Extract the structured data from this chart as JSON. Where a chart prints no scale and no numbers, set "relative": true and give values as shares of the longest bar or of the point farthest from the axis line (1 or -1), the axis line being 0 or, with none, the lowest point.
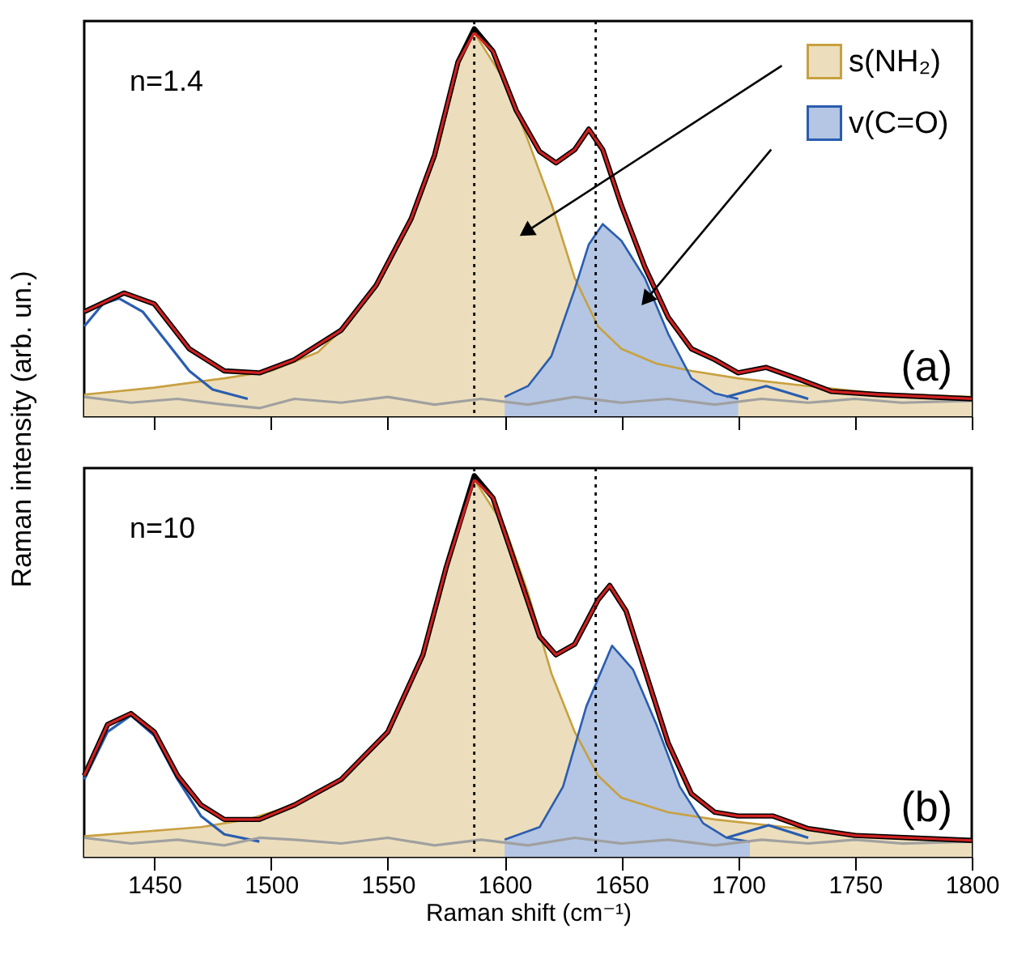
{
  "chart_data": [
    {
      "type": "line",
      "ylabel": "Raman intensity (arb. un.)",
      "relative": true,
      "xlim": [
        1420,
        1800
      ],
      "xticks": [
        1450,
        1500,
        1550,
        1600,
        1650,
        1700,
        1750,
        1800
      ],
      "tick_labels": false,
      "legend": "top right",
      "annotations": [
        "n=1.4",
        "(a)"
      ],
      "ref_lines": [
        {
          "axis": "x",
          "value": 1587,
          "color": "#000000",
          "line_style": "dotted"
        },
        {
          "axis": "x",
          "value": 1639,
          "color": "#000000",
          "line_style": "dotted"
        }
      ],
      "series": [
        {
          "name": "s(NH₂)",
          "type": "area",
          "color": "#c8a040",
          "x": [
            1420,
            1450,
            1480,
            1500,
            1520,
            1530,
            1545,
            1560,
            1570,
            1580,
            1587,
            1600,
            1610,
            1620,
            1630,
            1640,
            1650,
            1665,
            1680,
            1700,
            1730,
            1760,
            1800
          ],
          "values": [
            0.056,
            0.074,
            0.098,
            0.117,
            0.165,
            0.222,
            0.338,
            0.51,
            0.674,
            0.914,
            0.99,
            0.866,
            0.712,
            0.549,
            0.357,
            0.232,
            0.174,
            0.136,
            0.117,
            0.098,
            0.078,
            0.059,
            0.05
          ]
        },
        {
          "name": "v(C=O)",
          "type": "area",
          "color": "#2a5db0",
          "x": [
            1600,
            1610,
            1620,
            1630,
            1636,
            1642,
            1650,
            1660,
            1670,
            1680,
            1690,
            1700
          ],
          "values": [
            0.05,
            0.078,
            0.155,
            0.328,
            0.443,
            0.496,
            0.453,
            0.357,
            0.213,
            0.098,
            0.059,
            0.045
          ]
        },
        {
          "color": "#2a5db0",
          "x": [
            1420,
            1428,
            1435,
            1445,
            1455,
            1465,
            1475,
            1490,
            1590,
            1695,
            1712,
            1730
          ],
          "values": [
            0.232,
            0.29,
            0.304,
            0.27,
            0.194,
            0.117,
            0.069,
            0.045,
            null,
            0.05,
            0.078,
            0.045
          ]
        },
        {
          "color": "#a0a0a0",
          "x": [
            1420,
            1440,
            1460,
            1480,
            1495,
            1510,
            1530,
            1550,
            1570,
            1590,
            1610,
            1630,
            1650,
            1670,
            1690,
            1710,
            1730,
            1750,
            1770,
            1800
          ],
          "values": [
            0.05,
            0.035,
            0.045,
            0.03,
            0.021,
            0.045,
            0.035,
            0.05,
            0.03,
            0.045,
            0.03,
            0.05,
            0.035,
            0.045,
            0.03,
            0.045,
            0.035,
            0.045,
            0.035,
            0.04
          ]
        },
        {
          "color": "#000000",
          "x": [
            1420,
            1437,
            1450,
            1465,
            1480,
            1495,
            1510,
            1530,
            1545,
            1560,
            1570,
            1580,
            1587,
            1595,
            1605,
            1615,
            1622,
            1630,
            1636,
            1642,
            1650,
            1660,
            1670,
            1680,
            1690,
            1700,
            1712,
            1725,
            1740,
            1760,
            1800
          ],
          "values": [
            0.27,
            0.318,
            0.29,
            0.174,
            0.117,
            0.112,
            0.146,
            0.222,
            0.338,
            0.51,
            0.674,
            0.914,
            1.0,
            0.942,
            0.789,
            0.683,
            0.654,
            0.688,
            0.741,
            0.688,
            0.544,
            0.386,
            0.256,
            0.174,
            0.146,
            0.112,
            0.126,
            0.098,
            0.064,
            0.056,
            0.045
          ]
        },
        {
          "color": "#d02020",
          "x": [
            1420,
            1437,
            1450,
            1465,
            1480,
            1495,
            1510,
            1530,
            1545,
            1560,
            1570,
            1580,
            1587,
            1595,
            1605,
            1615,
            1622,
            1630,
            1636,
            1642,
            1650,
            1660,
            1670,
            1680,
            1690,
            1700,
            1712,
            1725,
            1740,
            1760,
            1800
          ],
          "values": [
            0.27,
            0.318,
            0.29,
            0.174,
            0.117,
            0.112,
            0.146,
            0.222,
            0.338,
            0.51,
            0.674,
            0.914,
            0.99,
            0.942,
            0.789,
            0.683,
            0.654,
            0.688,
            0.741,
            0.688,
            0.544,
            0.386,
            0.256,
            0.174,
            0.146,
            0.112,
            0.126,
            0.098,
            0.064,
            0.056,
            0.045
          ]
        }
      ]
    },
    {
      "type": "line",
      "xlabel": "Raman shift (cm⁻¹)",
      "relative": true,
      "xlim": [
        1420,
        1800
      ],
      "xticks": [
        1450,
        1500,
        1550,
        1600,
        1650,
        1700,
        1750,
        1800
      ],
      "tick_labels": "x",
      "annotations": [
        "n=10",
        "(b)"
      ],
      "ref_lines": [
        {
          "axis": "x",
          "value": 1587,
          "color": "#000000",
          "line_style": "dotted"
        },
        {
          "axis": "x",
          "value": 1639,
          "color": "#000000",
          "line_style": "dotted"
        }
      ],
      "series": [
        {
          "type": "area",
          "color": "#c8a040",
          "x": [
            1420,
            1470,
            1490,
            1510,
            1530,
            1550,
            1565,
            1575,
            1587,
            1600,
            1610,
            1620,
            1630,
            1640,
            1650,
            1670,
            1690,
            1720,
            1760,
            1800
          ],
          "values": [
            0.054,
            0.078,
            0.098,
            0.136,
            0.203,
            0.328,
            0.53,
            0.76,
            0.99,
            0.866,
            0.693,
            0.482,
            0.328,
            0.213,
            0.155,
            0.117,
            0.098,
            0.078,
            0.054,
            0.045
          ]
        },
        {
          "type": "area",
          "color": "#2a5db0",
          "x": [
            1600,
            1615,
            1625,
            1635,
            1646,
            1655,
            1665,
            1675,
            1685,
            1695,
            1705
          ],
          "values": [
            0.045,
            0.078,
            0.184,
            0.395,
            0.554,
            0.491,
            0.347,
            0.184,
            0.088,
            0.05,
            0.04
          ]
        },
        {
          "color": "#2a5db0",
          "x": [
            1420,
            1430,
            1440,
            1450,
            1460,
            1470,
            1480,
            1495,
            1590,
            1695,
            1713,
            1730
          ],
          "values": [
            0.203,
            0.328,
            0.371,
            0.318,
            0.203,
            0.107,
            0.059,
            0.04,
            null,
            0.05,
            0.083,
            0.05
          ]
        },
        {
          "color": "#a0a0a0",
          "x": [
            1420,
            1440,
            1460,
            1480,
            1495,
            1510,
            1530,
            1550,
            1570,
            1590,
            1610,
            1630,
            1650,
            1670,
            1690,
            1710,
            1730,
            1750,
            1770,
            1800
          ],
          "values": [
            0.05,
            0.035,
            0.045,
            0.03,
            0.05,
            0.045,
            0.035,
            0.05,
            0.03,
            0.045,
            0.03,
            0.05,
            0.035,
            0.045,
            0.03,
            0.045,
            0.035,
            0.045,
            0.035,
            0.04
          ]
        },
        {
          "color": "#000000",
          "x": [
            1420,
            1430,
            1440,
            1450,
            1460,
            1470,
            1480,
            1495,
            1510,
            1530,
            1550,
            1565,
            1575,
            1587,
            1595,
            1605,
            1615,
            1622,
            1630,
            1640,
            1645,
            1652,
            1660,
            1670,
            1680,
            1690,
            1700,
            1715,
            1730,
            1750,
            1800
          ],
          "values": [
            0.213,
            0.347,
            0.376,
            0.328,
            0.213,
            0.136,
            0.098,
            0.098,
            0.136,
            0.203,
            0.328,
            0.53,
            0.76,
            1.0,
            0.942,
            0.76,
            0.578,
            0.53,
            0.558,
            0.674,
            0.712,
            0.645,
            0.491,
            0.299,
            0.165,
            0.117,
            0.107,
            0.107,
            0.074,
            0.056,
            0.043
          ]
        },
        {
          "color": "#d02020",
          "x": [
            1420,
            1430,
            1440,
            1450,
            1460,
            1470,
            1480,
            1495,
            1510,
            1530,
            1550,
            1565,
            1575,
            1587,
            1595,
            1605,
            1615,
            1622,
            1630,
            1640,
            1645,
            1652,
            1660,
            1670,
            1680,
            1690,
            1700,
            1715,
            1730,
            1750,
            1800
          ],
          "values": [
            0.213,
            0.347,
            0.376,
            0.328,
            0.213,
            0.136,
            0.098,
            0.098,
            0.136,
            0.203,
            0.328,
            0.53,
            0.76,
            0.99,
            0.942,
            0.76,
            0.578,
            0.53,
            0.558,
            0.674,
            0.712,
            0.645,
            0.491,
            0.299,
            0.165,
            0.117,
            0.107,
            0.107,
            0.074,
            0.056,
            0.043
          ]
        }
      ]
    }
  ]
}
